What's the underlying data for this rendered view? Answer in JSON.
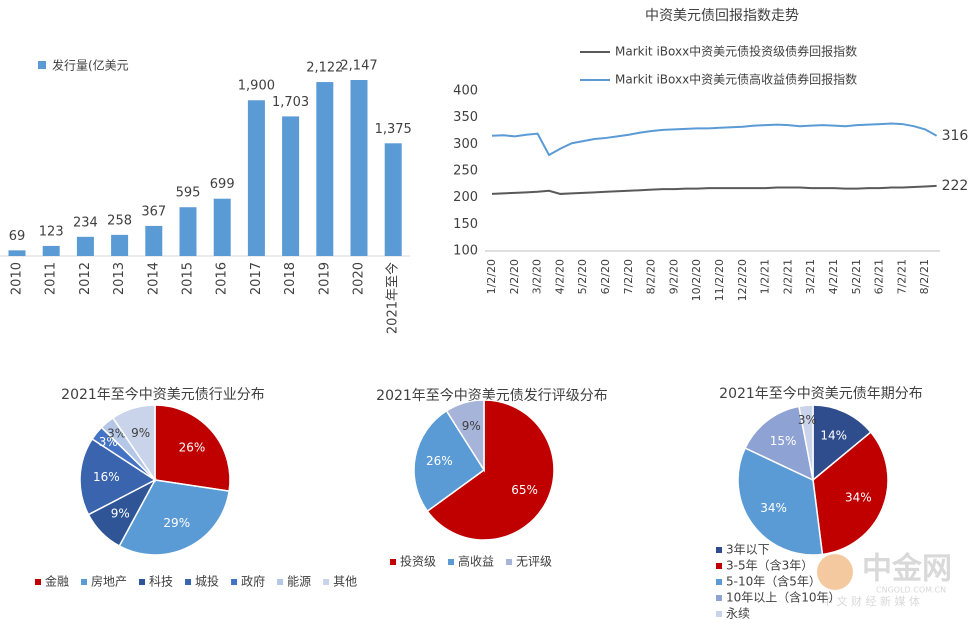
{
  "chart_data": [
    {
      "type": "bar",
      "categories": [
        "2010",
        "2011",
        "2012",
        "2013",
        "2014",
        "2015",
        "2016",
        "2017",
        "2018",
        "2019",
        "2020",
        "2021年至今"
      ],
      "series": [
        {
          "name": "发行量(亿美元",
          "color": "#5b9bd5",
          "values": [
            69,
            123,
            234,
            258,
            367,
            595,
            699,
            1900,
            1703,
            2122,
            2147,
            1375
          ],
          "value_labels": [
            "69",
            "123",
            "234",
            "258",
            "367",
            "595",
            "699",
            "1,900",
            "1,703",
            "2,122",
            "2,147",
            "1,375"
          ]
        }
      ]
    },
    {
      "type": "line",
      "title": "中资美元债回报指数走势",
      "categories": [
        "1/2/20",
        null,
        "2/2/20",
        null,
        "3/2/20",
        null,
        "4/2/20",
        null,
        "5/2/20",
        null,
        "6/2/20",
        null,
        "7/2/20",
        null,
        "8/2/20",
        null,
        "9/2/20",
        null,
        "10/2/20",
        null,
        "11/2/20",
        null,
        "12/2/20",
        null,
        "1/2/21",
        null,
        "2/2/21",
        null,
        "3/2/21",
        null,
        "4/2/21",
        null,
        "5/2/21",
        null,
        "6/2/21",
        null,
        "7/2/21",
        null,
        "8/2/21",
        null
      ],
      "series": [
        {
          "name": "Markit iBoxx中资美元债投资级债券回报指数",
          "color": "#595959",
          "values": [
            207,
            208,
            209,
            210,
            211,
            213,
            207,
            208,
            209,
            210,
            211,
            212,
            213,
            214,
            215,
            216,
            216,
            217,
            217,
            218,
            218,
            218,
            218,
            218,
            218,
            219,
            219,
            219,
            218,
            218,
            218,
            217,
            217,
            218,
            218,
            219,
            219,
            220,
            221,
            222
          ]
        },
        {
          "name": "Markit iBoxx中资美元债高收益债券回报指数",
          "color": "#5b9bd5",
          "values": [
            316,
            317,
            315,
            318,
            320,
            280,
            292,
            302,
            306,
            310,
            312,
            315,
            318,
            322,
            325,
            327,
            328,
            329,
            330,
            330,
            331,
            332,
            333,
            335,
            336,
            337,
            336,
            334,
            335,
            336,
            335,
            334,
            336,
            337,
            338,
            339,
            338,
            334,
            328,
            316
          ]
        }
      ],
      "ylim": [
        100,
        400
      ],
      "yticks": [
        100,
        150,
        200,
        250,
        300,
        350,
        400
      ],
      "grid": false
    },
    {
      "type": "pie",
      "title": "2021年至今中资美元债行业分布",
      "legend": "bottom-row",
      "categories": [
        "金融",
        "房地产",
        "科技",
        "城投",
        "政府",
        "能源",
        "其他"
      ],
      "values": [
        26,
        29,
        9,
        16,
        3,
        3,
        9
      ],
      "value_labels": [
        "26%",
        "29%",
        "9%",
        "16%",
        "3%",
        "3%",
        "9%"
      ],
      "colors": [
        "#c00000",
        "#5b9bd5",
        "#2f5597",
        "#3a64ad",
        "#4472c4",
        "#b4c7e7",
        "#c9d3ea"
      ]
    },
    {
      "type": "pie",
      "title": "2021年至今中资美元债发行评级分布",
      "legend": "bottom-row",
      "categories": [
        "投资级",
        "高收益",
        "无评级"
      ],
      "values": [
        65,
        26,
        9
      ],
      "value_labels": [
        "65%",
        "26%",
        "9%"
      ],
      "colors": [
        "#c00000",
        "#5b9bd5",
        "#a5b4d8"
      ]
    },
    {
      "type": "pie",
      "title": "2021年至今中资美元债年期分布",
      "legend": "bottom-column",
      "categories": [
        "3年以下",
        "3-5年（含3年）",
        "5-10年（含5年）",
        "10年以上（含10年）",
        "永续"
      ],
      "values": [
        14,
        34,
        34,
        15,
        3
      ],
      "value_labels": [
        "14%",
        "34%",
        "34%",
        "15%",
        "3%"
      ],
      "colors": [
        "#2f4d8c",
        "#c00000",
        "#5b9bd5",
        "#8ea2d4",
        "#c9d3ea"
      ]
    }
  ],
  "watermark": {
    "name": "中金网",
    "url": "CNGOLD.COM.CN",
    "slogan": "中 文 财 经 新 媒 体"
  }
}
